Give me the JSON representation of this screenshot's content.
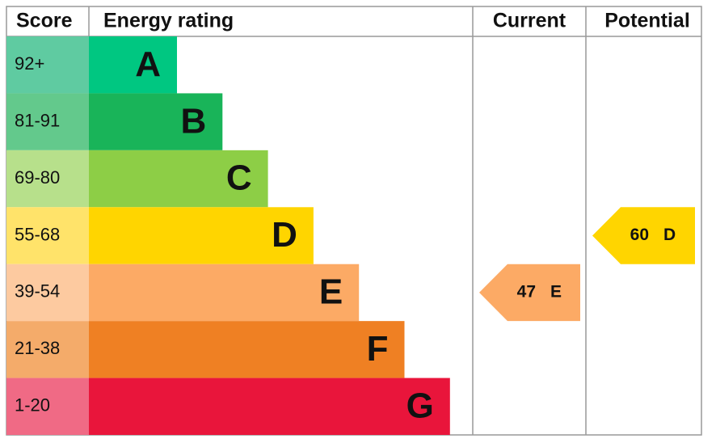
{
  "chart_data": {
    "type": "epc",
    "headers": [
      "Score",
      "Energy rating",
      "Current",
      "Potential"
    ],
    "bands": [
      {
        "score": "92+",
        "letter": "A",
        "color": "#00c781",
        "score_color": "#5fcba1"
      },
      {
        "score": "81-91",
        "letter": "B",
        "color": "#19b459",
        "score_color": "#63c98c"
      },
      {
        "score": "69-80",
        "letter": "C",
        "color": "#8dce46",
        "score_color": "#b7e08b"
      },
      {
        "score": "55-68",
        "letter": "D",
        "color": "#ffd500",
        "score_color": "#ffe36a"
      },
      {
        "score": "39-54",
        "letter": "E",
        "color": "#fcaa65",
        "score_color": "#fdcaa0"
      },
      {
        "score": "21-38",
        "letter": "F",
        "color": "#ef8023",
        "score_color": "#f4ab6a"
      },
      {
        "score": "1-20",
        "letter": "G",
        "color": "#e9153b",
        "score_color": "#f06a85"
      }
    ],
    "current": {
      "value": 47,
      "letter": "E"
    },
    "potential": {
      "value": 60,
      "letter": "D"
    }
  }
}
